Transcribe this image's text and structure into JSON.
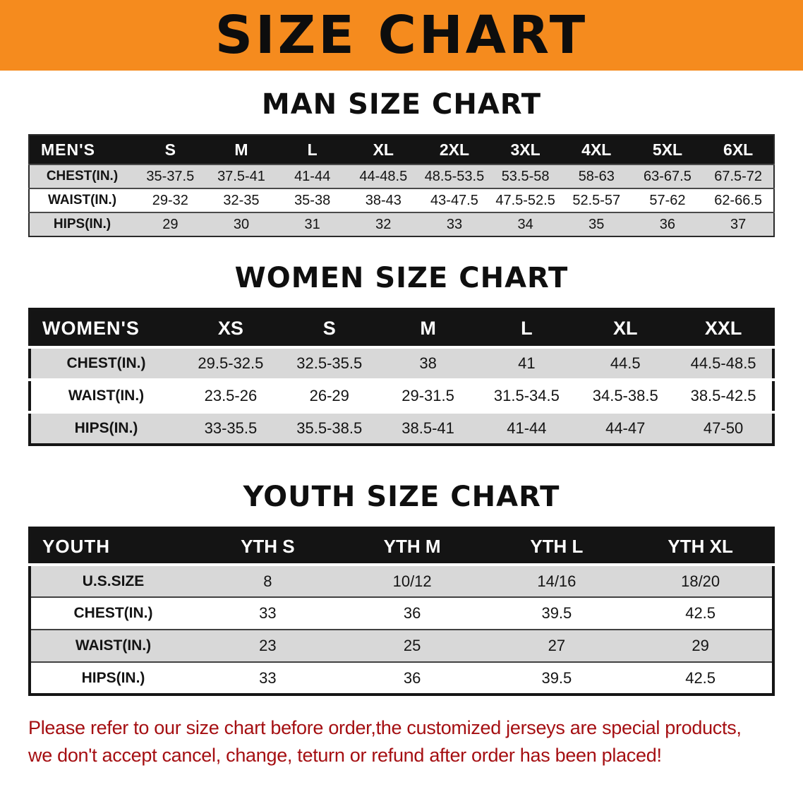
{
  "banner": {
    "title": "SIZE CHART"
  },
  "palette": {
    "banner_orange": "#f58b1e",
    "header_black": "#141414",
    "row_gray": "#d8d8d8",
    "disclaimer_red": "#a50f12"
  },
  "sections": [
    {
      "id": "men",
      "heading": "MAN SIZE CHART",
      "header": [
        "MEN'S",
        "S",
        "M",
        "L",
        "XL",
        "2XL",
        "3XL",
        "4XL",
        "5XL",
        "6XL"
      ],
      "rows": [
        [
          "CHEST(IN.)",
          "35-37.5",
          "37.5-41",
          "41-44",
          "44-48.5",
          "48.5-53.5",
          "53.5-58",
          "58-63",
          "63-67.5",
          "67.5-72"
        ],
        [
          "WAIST(IN.)",
          "29-32",
          "32-35",
          "35-38",
          "38-43",
          "43-47.5",
          "47.5-52.5",
          "52.5-57",
          "57-62",
          "62-66.5"
        ],
        [
          "HIPS(IN.)",
          "29",
          "30",
          "31",
          "32",
          "33",
          "34",
          "35",
          "36",
          "37"
        ]
      ]
    },
    {
      "id": "women",
      "heading": "WOMEN SIZE CHART",
      "header": [
        "WOMEN'S",
        "XS",
        "S",
        "M",
        "L",
        "XL",
        "XXL"
      ],
      "rows": [
        [
          "CHEST(IN.)",
          "29.5-32.5",
          "32.5-35.5",
          "38",
          "41",
          "44.5",
          "44.5-48.5"
        ],
        [
          "WAIST(IN.)",
          "23.5-26",
          "26-29",
          "29-31.5",
          "31.5-34.5",
          "34.5-38.5",
          "38.5-42.5"
        ],
        [
          "HIPS(IN.)",
          "33-35.5",
          "35.5-38.5",
          "38.5-41",
          "41-44",
          "44-47",
          "47-50"
        ]
      ]
    },
    {
      "id": "youth",
      "heading": "YOUTH SIZE CHART",
      "header": [
        "YOUTH",
        "YTH S",
        "YTH M",
        "YTH L",
        "YTH XL"
      ],
      "rows": [
        [
          "U.S.SIZE",
          "8",
          "10/12",
          "14/16",
          "18/20"
        ],
        [
          "CHEST(IN.)",
          "33",
          "36",
          "39.5",
          "42.5"
        ],
        [
          "WAIST(IN.)",
          "23",
          "25",
          "27",
          "29"
        ],
        [
          "HIPS(IN.)",
          "33",
          "36",
          "39.5",
          "42.5"
        ]
      ]
    }
  ],
  "disclaimer": {
    "lines": [
      "Please refer to our size chart before order,the customized jerseys are special products,",
      "we don't accept cancel, change, teturn or refund after order has been placed!"
    ]
  }
}
